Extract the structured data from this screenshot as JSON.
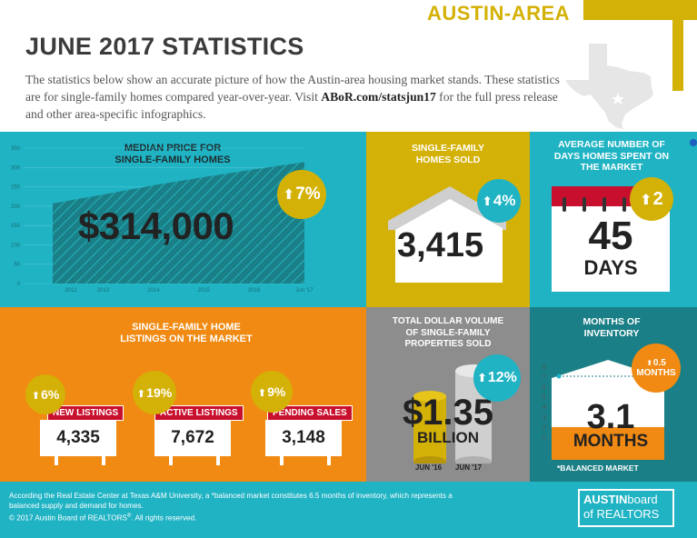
{
  "header": {
    "region_tag": "AUSTIN-AREA",
    "title": "JUNE 2017 STATISTICS",
    "intro_pre": "The statistics below show an accurate picture of how the Austin-area housing market stands. These statistics are for single-family homes compared year-over-year. Visit ",
    "intro_link": "ABoR.com/statsjun17",
    "intro_post": " for the full press release and other area-specific infographics."
  },
  "median_price": {
    "title_line1": "MEDIAN PRICE FOR",
    "title_line2": "SINGLE-FAMILY HOMES",
    "value": "$314,000",
    "change": "7%"
  },
  "chart_data": {
    "type": "area",
    "categories": [
      "2012",
      "2013",
      "2014",
      "2015",
      "2016",
      "Jun '17"
    ],
    "values": [
      207,
      230,
      254,
      275,
      295,
      314
    ],
    "yticks": [
      "350",
      "300",
      "250",
      "200",
      "150",
      "100",
      "50",
      "0"
    ],
    "ylim": [
      0,
      350
    ],
    "title": "",
    "xlabel": "",
    "ylabel": "",
    "grid": true
  },
  "homes_sold": {
    "title_line1": "SINGLE-FAMILY",
    "title_line2": "HOMES SOLD",
    "value": "3,415",
    "change": "4%"
  },
  "days_on_market": {
    "title_line1": "AVERAGE NUMBER OF",
    "title_line2": "DAYS HOMES SPENT ON",
    "title_line3": "THE MARKET",
    "value": "45",
    "unit": "DAYS",
    "change": "2"
  },
  "listings": {
    "title_line1": "SINGLE-FAMILY HOME",
    "title_line2": "LISTINGS ON THE MARKET",
    "items": [
      {
        "label": "NEW LISTINGS",
        "value": "4,335",
        "change": "6%"
      },
      {
        "label": "ACTIVE LISTINGS",
        "value": "7,672",
        "change": "19%"
      },
      {
        "label": "PENDING SALES",
        "value": "3,148",
        "change": "9%"
      }
    ]
  },
  "dollar_volume": {
    "title_line1": "TOTAL DOLLAR VOLUME",
    "title_line2": "OF SINGLE-FAMILY",
    "title_line3": "PROPERTIES SOLD",
    "value": "$1.35",
    "unit": "BILLION",
    "change": "12%",
    "label_prev": "JUN '16",
    "label_curr": "JUN '17"
  },
  "inventory": {
    "title_line1": "MONTHS OF",
    "title_line2": "INVENTORY",
    "change_value": "0.5",
    "change_unit": "MONTHS",
    "value": "3.1",
    "unit": "MONTHS",
    "note": "*BALANCED MARKET",
    "mini_yticks": [
      "8",
      "7",
      "6",
      "5",
      "4",
      "3",
      "2",
      "1"
    ]
  },
  "footer": {
    "note": "According the Real Estate Center at Texas A&M University, a *balanced market constitutes 6.5 months of inventory, which represents a balanced supply and demand for homes.",
    "copyright_pre": "© 2017  Austin Board of REALTORS",
    "copyright_sup": "®",
    "copyright_post": ". All rights reserved.",
    "logo_line1a": "AUSTIN",
    "logo_line1b": "board",
    "logo_line2": "of REALTORS"
  },
  "colors": {
    "teal": "#1fb3c4",
    "dark_teal": "#1a7f86",
    "gold": "#d4b106",
    "orange": "#f08a12",
    "gray": "#8d8d8d",
    "red": "#c8102e"
  }
}
